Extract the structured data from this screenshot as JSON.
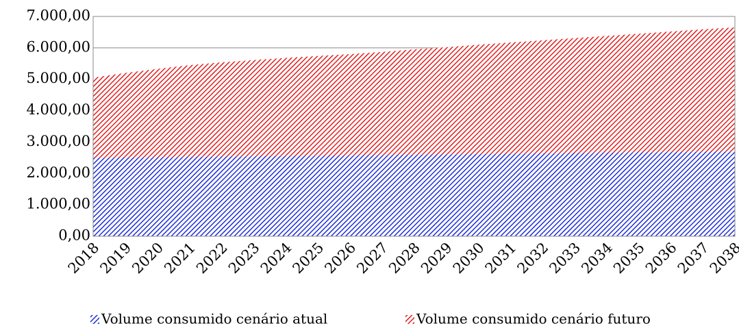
{
  "chart_data": {
    "type": "stacked_area",
    "categories": [
      "2018",
      "2019",
      "2020",
      "2021",
      "2022",
      "2023",
      "2024",
      "2025",
      "2026",
      "2027",
      "2028",
      "2029",
      "2030",
      "2031",
      "2032",
      "2033",
      "2034",
      "2035",
      "2036",
      "2037",
      "2038"
    ],
    "series": [
      {
        "name": "Volume consumido cenário atual",
        "color": "#1f2fd6",
        "values": [
          2500,
          2510,
          2520,
          2530,
          2540,
          2550,
          2560,
          2570,
          2580,
          2590,
          2600,
          2610,
          2620,
          2630,
          2640,
          2650,
          2660,
          2670,
          2680,
          2690,
          2700
        ]
      },
      {
        "name": "Volume consumido cenário futuro",
        "color": "#e02020",
        "values": [
          2550,
          2690,
          2810,
          2920,
          3000,
          3060,
          3120,
          3170,
          3220,
          3280,
          3350,
          3410,
          3480,
          3540,
          3600,
          3660,
          3720,
          3780,
          3840,
          3900,
          3950
        ]
      }
    ],
    "ylim": [
      0,
      7000
    ],
    "yticks": [
      {
        "value": 0,
        "label": "0,00"
      },
      {
        "value": 1000,
        "label": "1.000,00"
      },
      {
        "value": 2000,
        "label": "2.000,00"
      },
      {
        "value": 3000,
        "label": "3.000,00"
      },
      {
        "value": 4000,
        "label": "4.000,00"
      },
      {
        "value": 5000,
        "label": "5.000,00"
      },
      {
        "value": 6000,
        "label": "6.000,00"
      },
      {
        "value": 7000,
        "label": "7.000,00"
      }
    ],
    "grid": true,
    "legend": "bottom"
  }
}
